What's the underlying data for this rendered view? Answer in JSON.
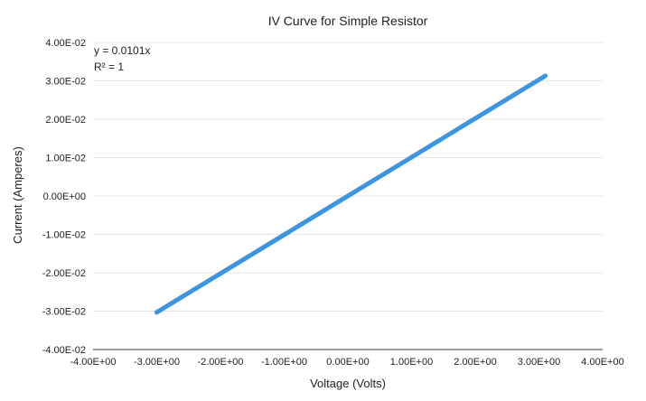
{
  "chart_data": {
    "type": "line",
    "title": "IV Curve for Simple Resistor",
    "xlabel": "Voltage (Volts)",
    "ylabel": "Current (Amperes)",
    "xlim": [
      -4,
      4
    ],
    "ylim": [
      -0.04,
      0.04
    ],
    "x_ticks": [
      -4,
      -3,
      -2,
      -1,
      0,
      1,
      2,
      3,
      4
    ],
    "x_tick_labels": [
      "-4.00E+00",
      "-3.00E+00",
      "-2.00E+00",
      "-1.00E+00",
      "0.00E+00",
      "1.00E+00",
      "2.00E+00",
      "3.00E+00",
      "4.00E+00"
    ],
    "y_ticks": [
      0.04,
      0.03,
      0.02,
      0.01,
      0,
      -0.01,
      -0.02,
      -0.03,
      -0.04
    ],
    "y_tick_labels": [
      "4.00E-02",
      "3.00E-02",
      "2.00E-02",
      "1.00E-02",
      "0.00E+00",
      "-1.00E-02",
      "-2.00E-02",
      "-3.00E-02",
      "-4.00E-02"
    ],
    "grid": true,
    "series": [
      {
        "x": [
          -3.0,
          -2.0,
          -1.0,
          0.0,
          1.0,
          2.0,
          3.1
        ],
        "y": [
          -0.0303,
          -0.0202,
          -0.0101,
          0.0,
          0.0101,
          0.0202,
          0.0313
        ],
        "color": "#3d94e0"
      }
    ],
    "trendline": {
      "equation": "y = 0.0101x",
      "r_squared": "R² = 1"
    }
  }
}
